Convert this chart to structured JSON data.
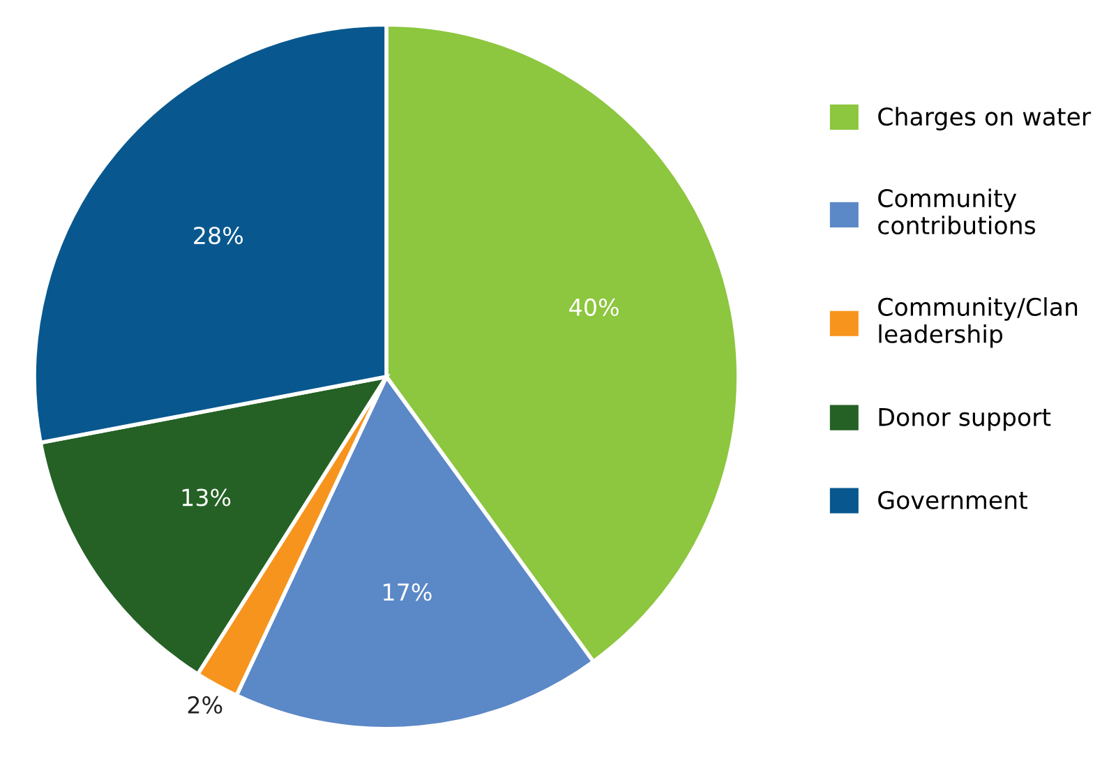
{
  "chart_data": {
    "type": "pie",
    "categories": [
      "Charges on water",
      "Community\ncontributions",
      "Community/Clan\nleadership",
      "Donor support",
      "Government"
    ],
    "values": [
      40,
      17,
      2,
      13,
      28
    ],
    "colors": [
      "#8dc63f",
      "#5b88c6",
      "#f7941d",
      "#256125",
      "#08588f"
    ],
    "value_labels": [
      "40%",
      "17%",
      "2%",
      "13%",
      "28%"
    ],
    "legend": "right"
  }
}
